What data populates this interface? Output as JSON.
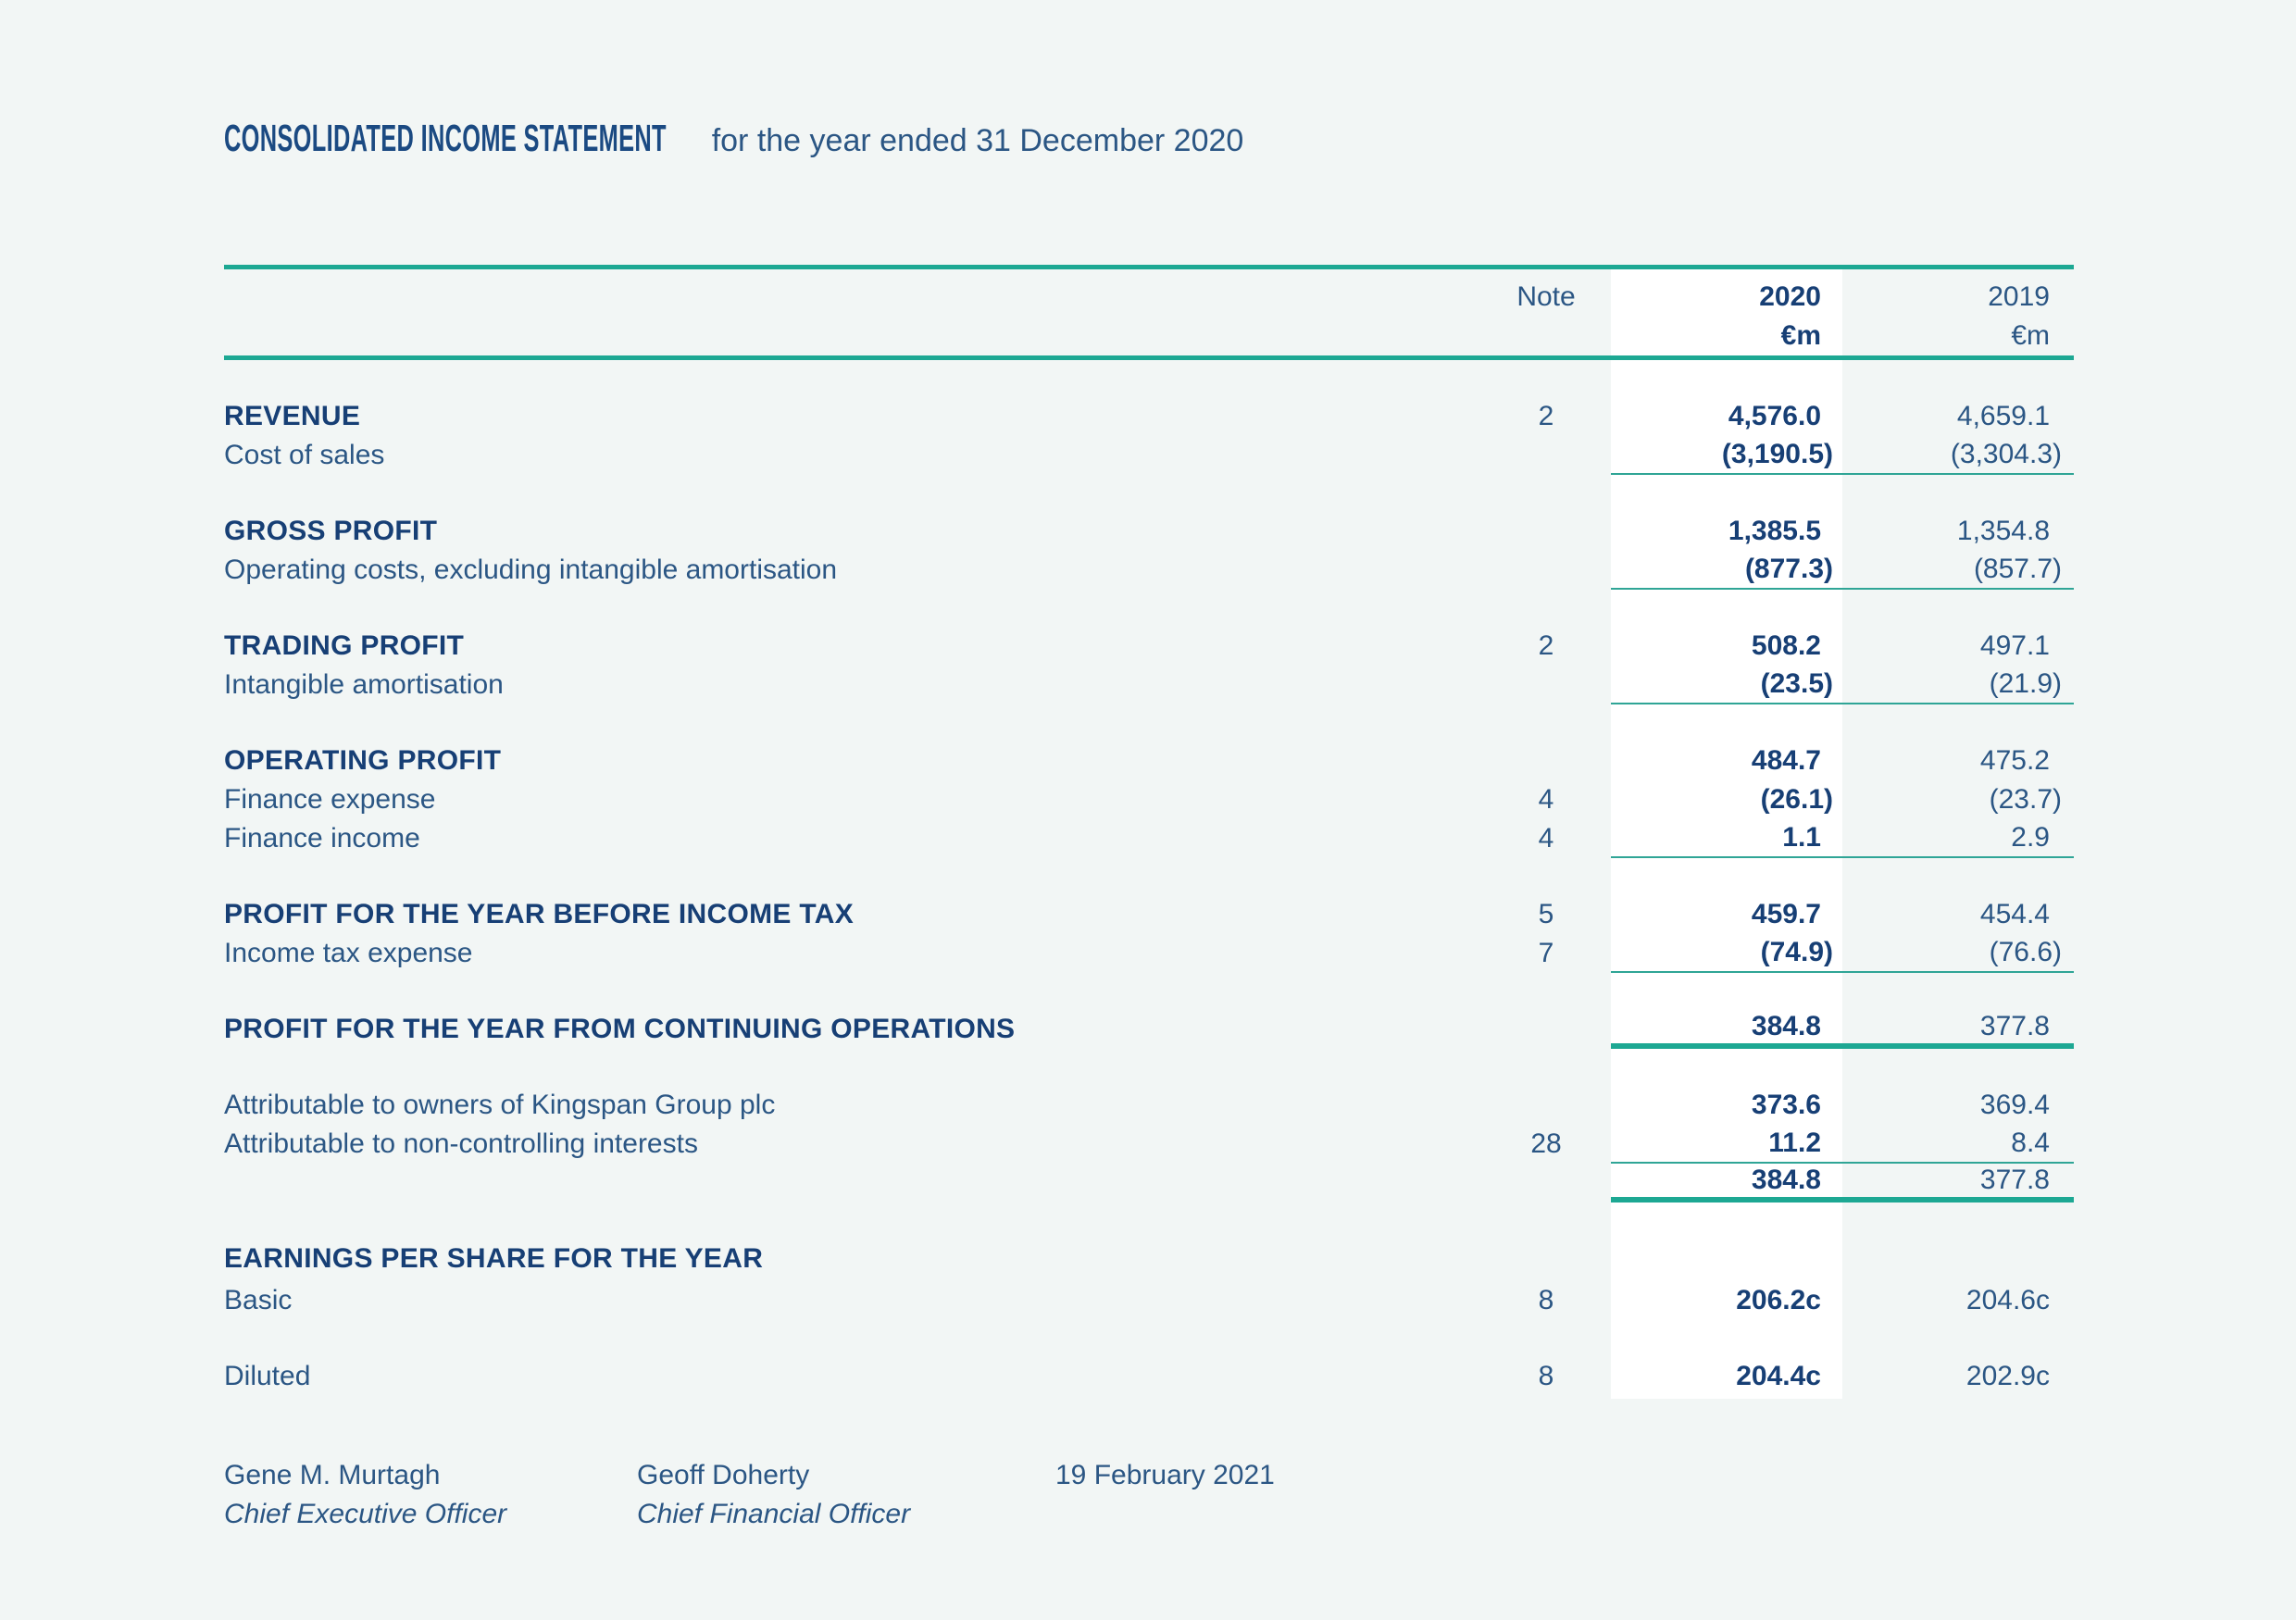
{
  "colors": {
    "background": "#f2f6f5",
    "highlight_column": "#ffffff",
    "rule_teal": "#1da893",
    "text_navy": "#2b5684",
    "text_navy_bold": "#173f75"
  },
  "title": {
    "bold": "CONSOLIDATED INCOME STATEMENT",
    "rest": "for the year ended 31 December 2020"
  },
  "table": {
    "header": {
      "note": "Note",
      "col2020": "2020",
      "col2019": "2019",
      "unit": "€m"
    },
    "rows": [
      {
        "label": "REVENUE",
        "note": "2",
        "y2020": "4,576.0",
        "y2019": "4,659.1"
      },
      {
        "label": "Cost of sales",
        "note": "",
        "y2020": "(3,190.5)",
        "y2019": "(3,304.3)"
      },
      {
        "label": "GROSS PROFIT",
        "note": "",
        "y2020": "1,385.5",
        "y2019": "1,354.8"
      },
      {
        "label": "Operating costs, excluding intangible amortisation",
        "note": "",
        "y2020": "(877.3)",
        "y2019": "(857.7)"
      },
      {
        "label": "TRADING PROFIT",
        "note": "2",
        "y2020": "508.2",
        "y2019": "497.1"
      },
      {
        "label": "Intangible amortisation",
        "note": "",
        "y2020": "(23.5)",
        "y2019": "(21.9)"
      },
      {
        "label": "OPERATING PROFIT",
        "note": "",
        "y2020": "484.7",
        "y2019": "475.2"
      },
      {
        "label": "Finance expense",
        "note": "4",
        "y2020": "(26.1)",
        "y2019": "(23.7)"
      },
      {
        "label": "Finance income",
        "note": "4",
        "y2020": "1.1",
        "y2019": "2.9"
      },
      {
        "label": "PROFIT FOR THE YEAR BEFORE INCOME TAX",
        "note": "5",
        "y2020": "459.7",
        "y2019": "454.4"
      },
      {
        "label": "Income tax expense",
        "note": "7",
        "y2020": "(74.9)",
        "y2019": "(76.6)"
      },
      {
        "label": "PROFIT FOR THE YEAR FROM CONTINUING OPERATIONS",
        "note": "",
        "y2020": "384.8",
        "y2019": "377.8"
      },
      {
        "label": "Attributable to owners of Kingspan Group plc",
        "note": "",
        "y2020": "373.6",
        "y2019": "369.4"
      },
      {
        "label": "Attributable to non-controlling interests",
        "note": "28",
        "y2020": "11.2",
        "y2019": "8.4"
      },
      {
        "label": "",
        "note": "",
        "y2020": "384.8",
        "y2019": "377.8"
      },
      {
        "label": "EARNINGS PER SHARE FOR THE YEAR",
        "note": "",
        "y2020": "",
        "y2019": ""
      },
      {
        "label": "Basic",
        "note": "8",
        "y2020": "206.2c",
        "y2019": "204.6c"
      },
      {
        "label": "Diluted",
        "note": "8",
        "y2020": "204.4c",
        "y2019": "202.9c"
      }
    ]
  },
  "signature": {
    "signatories": [
      {
        "name": "Gene M. Murtagh",
        "title": "Chief Executive Officer"
      },
      {
        "name": "Geoff Doherty",
        "title": "Chief Financial Officer"
      }
    ],
    "date": "19 February 2021"
  }
}
